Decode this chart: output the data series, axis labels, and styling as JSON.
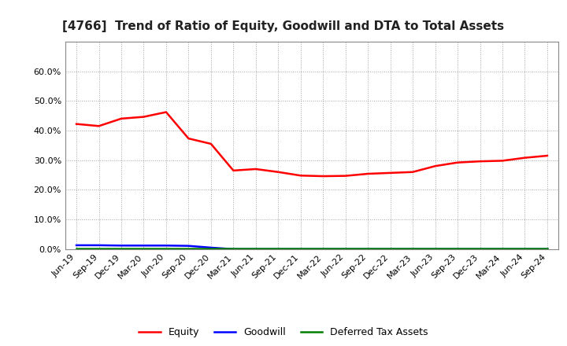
{
  "title": "[4766]  Trend of Ratio of Equity, Goodwill and DTA to Total Assets",
  "x_labels": [
    "Jun-19",
    "Sep-19",
    "Dec-19",
    "Mar-20",
    "Jun-20",
    "Sep-20",
    "Dec-20",
    "Mar-21",
    "Jun-21",
    "Sep-21",
    "Dec-21",
    "Mar-22",
    "Jun-22",
    "Sep-22",
    "Dec-22",
    "Mar-23",
    "Jun-23",
    "Sep-23",
    "Dec-23",
    "Mar-24",
    "Jun-24",
    "Sep-24"
  ],
  "equity": [
    0.422,
    0.415,
    0.44,
    0.446,
    0.462,
    0.373,
    0.355,
    0.265,
    0.27,
    0.26,
    0.248,
    0.246,
    0.247,
    0.254,
    0.257,
    0.26,
    0.28,
    0.292,
    0.296,
    0.298,
    0.308,
    0.315
  ],
  "goodwill": [
    0.013,
    0.013,
    0.012,
    0.012,
    0.012,
    0.011,
    0.005,
    0.0,
    0.0,
    0.0,
    0.0,
    0.0,
    0.0,
    0.0,
    0.0,
    0.0,
    0.0,
    0.0,
    0.0,
    0.0,
    0.0,
    0.0
  ],
  "dta": [
    0.003,
    0.003,
    0.003,
    0.003,
    0.003,
    0.003,
    0.003,
    0.003,
    0.003,
    0.003,
    0.003,
    0.003,
    0.003,
    0.003,
    0.003,
    0.003,
    0.003,
    0.003,
    0.003,
    0.003,
    0.003,
    0.003
  ],
  "equity_color": "#FF0000",
  "goodwill_color": "#0000FF",
  "dta_color": "#008000",
  "bg_color": "#FFFFFF",
  "plot_bg_color": "#FFFFFF",
  "grid_color": "#999999",
  "ylim": [
    0.0,
    0.7
  ],
  "yticks": [
    0.0,
    0.1,
    0.2,
    0.3,
    0.4,
    0.5,
    0.6
  ],
  "legend_labels": [
    "Equity",
    "Goodwill",
    "Deferred Tax Assets"
  ],
  "line_width": 1.8,
  "title_fontsize": 11,
  "tick_fontsize": 8,
  "legend_fontsize": 9
}
